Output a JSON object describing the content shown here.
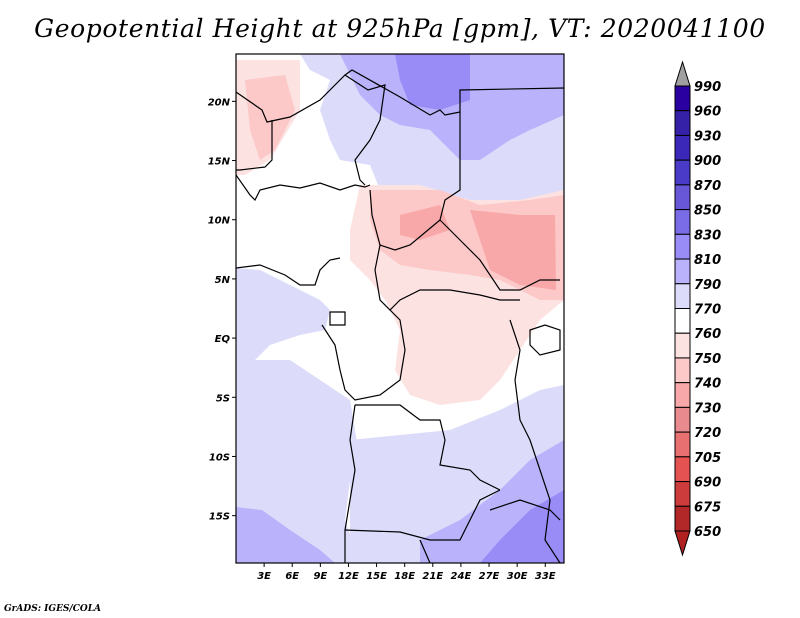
{
  "title": "Geopotential Height at 925hPa [gpm], VT: 2020041100",
  "credit": "GrADS: IGES/COLA",
  "map": {
    "variable": "Geopotential Height",
    "level": "925hPa",
    "units": "gpm",
    "valid_time": "2020041100",
    "lon_range": [
      0,
      35
    ],
    "lat_range": [
      -19,
      24
    ],
    "lat_ticks": [
      {
        "value": 20,
        "label": "20N"
      },
      {
        "value": 15,
        "label": "15N"
      },
      {
        "value": 10,
        "label": "10N"
      },
      {
        "value": 5,
        "label": "5N"
      },
      {
        "value": 0,
        "label": "EQ"
      },
      {
        "value": -5,
        "label": "5S"
      },
      {
        "value": -10,
        "label": "10S"
      },
      {
        "value": -15,
        "label": "15S"
      }
    ],
    "lon_ticks": [
      {
        "value": 3,
        "label": "3E"
      },
      {
        "value": 6,
        "label": "6E"
      },
      {
        "value": 9,
        "label": "9E"
      },
      {
        "value": 12,
        "label": "12E"
      },
      {
        "value": 15,
        "label": "15E"
      },
      {
        "value": 18,
        "label": "18E"
      },
      {
        "value": 21,
        "label": "21E"
      },
      {
        "value": 24,
        "label": "24E"
      },
      {
        "value": 27,
        "label": "27E"
      },
      {
        "value": 30,
        "label": "30E"
      },
      {
        "value": 33,
        "label": "33E"
      }
    ]
  },
  "colorbar": {
    "levels": [
      "990",
      "960",
      "930",
      "900",
      "870",
      "850",
      "830",
      "810",
      "790",
      "770",
      "760",
      "750",
      "740",
      "730",
      "720",
      "705",
      "690",
      "675",
      "650"
    ],
    "colors": [
      "#2a00a0",
      "#3520a8",
      "#3b28b8",
      "#4a3cc8",
      "#6858d8",
      "#7a6ce6",
      "#9a8cf6",
      "#bab2fa",
      "#dcdcfa",
      "#ffffff",
      "#fde2e2",
      "#fcc8c8",
      "#f8a8a8",
      "#e88a8e",
      "#e87070",
      "#e45252",
      "#cc3c3c",
      "#b22828"
    ],
    "over_color": "#a0a0a0",
    "under_color": "#b02020"
  }
}
